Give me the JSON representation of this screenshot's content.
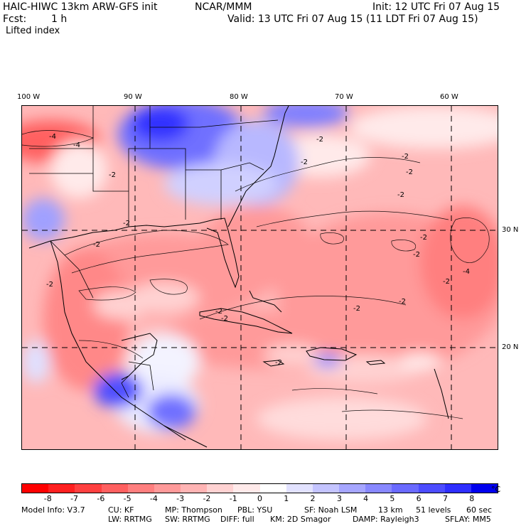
{
  "header": {
    "model": "HAIC-HIWC 13km ARW-GFS init",
    "org": "NCAR/MMM",
    "init": "Init: 12 UTC Fri 07 Aug 15",
    "fcst_label": "Fcst:",
    "fcst_value": "1 h",
    "valid": "Valid: 13 UTC Fri 07 Aug 15 (11 LDT Fri 07 Aug 15)",
    "field": "Lifted index"
  },
  "map": {
    "lon_labels": [
      "100 W",
      "90 W",
      "80 W",
      "70 W",
      "60 W"
    ],
    "lat_labels": [
      "30 N",
      "20 N"
    ],
    "contour_labels": [
      "-4",
      "-4",
      "-2",
      "-2",
      "-2",
      "-2",
      "-2",
      "-2",
      "-2",
      "-2",
      "-2",
      "-2",
      "-2",
      "-2",
      "-2",
      "-2",
      "-4",
      "-2",
      "-2",
      "-2"
    ]
  },
  "colorbar": {
    "unit": "°C",
    "ticks": [
      "-8",
      "-7",
      "-6",
      "-5",
      "-4",
      "-3",
      "-2",
      "-1",
      "0",
      "1",
      "2",
      "3",
      "4",
      "5",
      "6",
      "7",
      "8"
    ],
    "colors": [
      "#ff0000",
      "#ff2020",
      "#ff4040",
      "#ff6060",
      "#ff7f7f",
      "#ff9a9a",
      "#ffb4b4",
      "#ffd2d2",
      "#ffeaea",
      "#ffffff",
      "#e2e2ff",
      "#c4c4ff",
      "#a6a6ff",
      "#8888ff",
      "#6a6aff",
      "#4c4cff",
      "#2e2eff",
      "#0000ee"
    ]
  },
  "footer": {
    "line1": [
      "Model Info: V3.7",
      "CU: KF",
      "MP: Thompson",
      "PBL: YSU",
      "SF: Noah LSM",
      "13 km",
      "51 levels",
      "60 sec"
    ],
    "line2": [
      "LW: RRTMG",
      "SW: RRTMG",
      "DIFF: full",
      "KM: 2D Smagor",
      "DAMP: Rayleigh3",
      "SFLAY: MM5"
    ]
  }
}
